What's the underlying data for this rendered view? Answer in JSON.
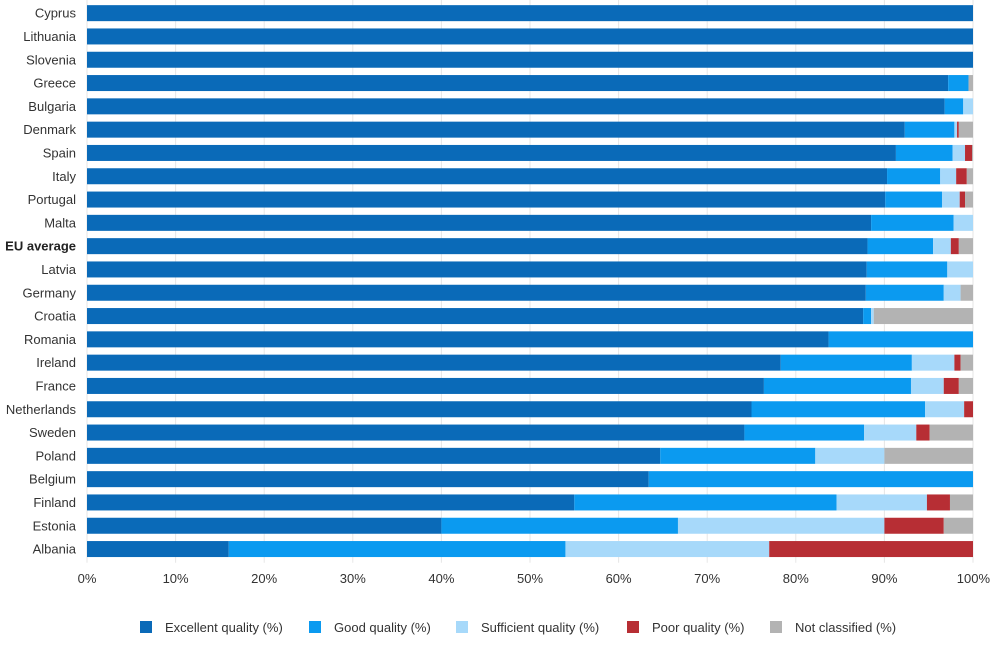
{
  "chart_data": {
    "type": "bar",
    "orientation": "horizontal",
    "stacked": true,
    "categories": [
      "Cyprus",
      "Lithuania",
      "Slovenia",
      "Greece",
      "Bulgaria",
      "Denmark",
      "Spain",
      "Italy",
      "Portugal",
      "Malta",
      "EU average",
      "Latvia",
      "Germany",
      "Croatia",
      "Romania",
      "Ireland",
      "France",
      "Netherlands",
      "Sweden",
      "Poland",
      "Belgium",
      "Finland",
      "Estonia",
      "Albania"
    ],
    "emphasized_category": "EU average",
    "series": [
      {
        "name": "Excellent quality (%)",
        "color": "#0a6ab8",
        "values": [
          100,
          100,
          100,
          97.2,
          96.8,
          92.3,
          91.3,
          90.3,
          90.1,
          88.5,
          88.1,
          88.0,
          87.9,
          87.6,
          83.7,
          78.3,
          76.4,
          75.0,
          74.2,
          64.7,
          63.4,
          55.0,
          40.0,
          16.0
        ]
      },
      {
        "name": "Good quality (%)",
        "color": "#0b9af0",
        "values": [
          0,
          0,
          0,
          2.3,
          2.1,
          5.6,
          6.4,
          6.0,
          6.4,
          9.3,
          7.4,
          9.1,
          8.8,
          0.9,
          16.3,
          14.8,
          16.6,
          19.6,
          13.5,
          17.5,
          36.6,
          29.6,
          26.7,
          38.0
        ]
      },
      {
        "name": "Sufficient quality (%)",
        "color": "#a7d9fa",
        "values": [
          0,
          0,
          0,
          0,
          1.1,
          0.3,
          1.4,
          1.8,
          2.0,
          2.2,
          2.0,
          2.9,
          1.9,
          0.3,
          0,
          4.8,
          3.7,
          4.4,
          5.9,
          7.8,
          0,
          10.2,
          23.3,
          23.0
        ]
      },
      {
        "name": "Poor quality (%)",
        "color": "#b72e34",
        "values": [
          0,
          0,
          0,
          0,
          0,
          0.2,
          0.8,
          1.2,
          0.6,
          0,
          0.9,
          0,
          0,
          0,
          0,
          0.7,
          1.7,
          1.0,
          1.5,
          0,
          0,
          2.6,
          6.7,
          23.0
        ]
      },
      {
        "name": "Not classified (%)",
        "color": "#b3b3b3",
        "values": [
          0,
          0,
          0,
          0.5,
          0,
          1.6,
          0.1,
          0.7,
          0.9,
          0,
          1.6,
          0,
          1.4,
          11.2,
          0,
          1.4,
          1.6,
          0,
          4.9,
          10.0,
          0,
          2.6,
          3.3,
          0
        ]
      }
    ],
    "x_ticks": [
      "0%",
      "10%",
      "20%",
      "30%",
      "40%",
      "50%",
      "60%",
      "70%",
      "80%",
      "90%",
      "100%"
    ],
    "xlim": [
      0,
      100
    ],
    "grid": true,
    "legend_position": "bottom"
  }
}
